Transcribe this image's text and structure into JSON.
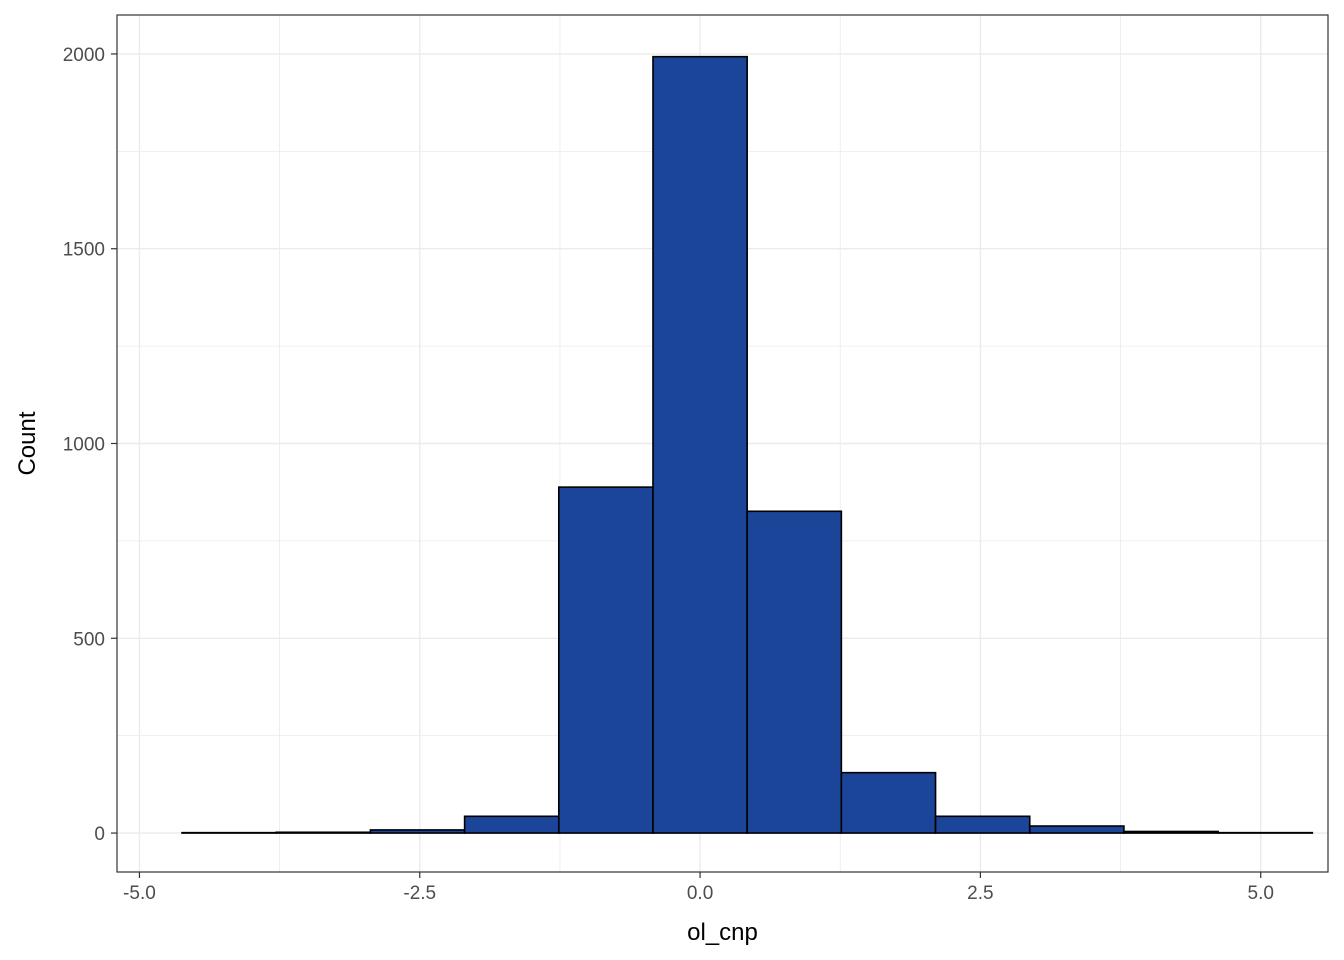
{
  "chart_data": {
    "type": "bar",
    "xlabel": "ol_cnp",
    "ylabel": "Count",
    "xlim": [
      -5.2,
      5.6
    ],
    "ylim": [
      -100,
      2100
    ],
    "x_ticks": [
      {
        "value": -5.0,
        "label": "-5.0"
      },
      {
        "value": -2.5,
        "label": "-2.5"
      },
      {
        "value": 0.0,
        "label": "0.0"
      },
      {
        "value": 2.5,
        "label": "2.5"
      },
      {
        "value": 5.0,
        "label": "5.0"
      }
    ],
    "y_ticks": [
      {
        "value": 0,
        "label": "0"
      },
      {
        "value": 500,
        "label": "500"
      },
      {
        "value": 1000,
        "label": "1000"
      },
      {
        "value": 1500,
        "label": "1500"
      },
      {
        "value": 2000,
        "label": "2000"
      }
    ],
    "bin_edges": [
      -4.62,
      -3.78,
      -2.94,
      -2.1,
      -1.26,
      -0.42,
      0.42,
      1.26,
      2.1,
      2.94,
      3.78,
      4.62,
      5.46
    ],
    "values": [
      1,
      2,
      8,
      43,
      888,
      1993,
      826,
      155,
      43,
      18,
      4,
      1
    ],
    "grid": true,
    "colors": {
      "fill": "#1a4599",
      "stroke": "#000000",
      "grid": "#ebebeb",
      "panel_border": "#333333"
    }
  }
}
